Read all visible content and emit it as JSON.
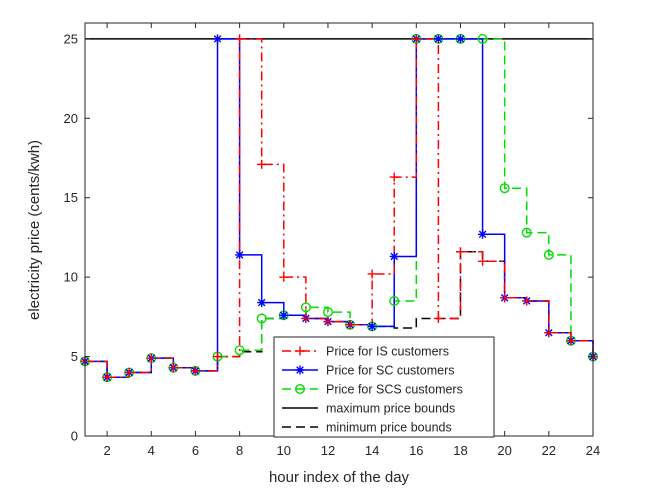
{
  "chart_data": {
    "type": "line",
    "step": true,
    "xlabel": "hour index of the day",
    "ylabel": "electricity price (cents/kwh)",
    "xlim": [
      1,
      24
    ],
    "ylim": [
      0,
      26
    ],
    "xticks": [
      2,
      4,
      6,
      8,
      10,
      12,
      14,
      16,
      18,
      20,
      22,
      24
    ],
    "yticks": [
      0,
      5,
      10,
      15,
      20,
      25
    ],
    "grid": false,
    "legend_position": "bottom-center",
    "x": [
      1,
      2,
      3,
      4,
      5,
      6,
      7,
      8,
      9,
      10,
      11,
      12,
      13,
      14,
      15,
      16,
      17,
      18,
      19,
      20,
      21,
      22,
      23,
      24
    ],
    "series": [
      {
        "name": "minimum price bounds",
        "color": "#000000",
        "style": "dashed",
        "marker": "none",
        "values": [
          4.7,
          3.7,
          4.0,
          4.9,
          4.3,
          4.1,
          5.0,
          5.3,
          7.4,
          7.6,
          7.4,
          7.2,
          7.0,
          6.9,
          6.8,
          7.4,
          7.4,
          11.6,
          11.0,
          8.7,
          8.5,
          6.5,
          6.0,
          5.0
        ]
      },
      {
        "name": "maximum price bounds",
        "color": "#000000",
        "style": "solid",
        "marker": "none",
        "values": [
          25,
          25,
          25,
          25,
          25,
          25,
          25,
          25,
          25,
          25,
          25,
          25,
          25,
          25,
          25,
          25,
          25,
          25,
          25,
          25,
          25,
          25,
          25,
          25
        ]
      },
      {
        "name": "Price for SCS customers",
        "color": "#00dd00",
        "style": "dashed",
        "marker": "circle",
        "values": [
          4.7,
          3.7,
          4.0,
          4.9,
          4.3,
          4.1,
          5.0,
          5.4,
          7.4,
          7.6,
          8.1,
          7.8,
          7.0,
          6.9,
          8.5,
          25,
          25,
          25,
          25,
          15.6,
          12.8,
          11.4,
          6.0,
          5.0
        ]
      },
      {
        "name": "Price for SC customers",
        "color": "#0000ff",
        "style": "solid",
        "marker": "star",
        "values": [
          4.7,
          3.7,
          4.0,
          4.9,
          4.3,
          4.1,
          25,
          11.4,
          8.4,
          7.6,
          7.4,
          7.2,
          7.0,
          6.9,
          11.3,
          25,
          25,
          25,
          12.7,
          8.7,
          8.5,
          6.5,
          6.0,
          5.0
        ]
      },
      {
        "name": "Price for IS customers",
        "color": "#ff0000",
        "style": "dashdot",
        "marker": "plus",
        "values": [
          4.7,
          3.7,
          4.0,
          4.9,
          4.3,
          4.1,
          5.0,
          25,
          17.1,
          10.0,
          7.4,
          7.2,
          7.0,
          10.2,
          16.3,
          25,
          7.4,
          11.6,
          11.0,
          8.7,
          8.5,
          6.5,
          6.0,
          5.0
        ]
      }
    ],
    "legend_order": [
      "Price for IS customers",
      "Price for SC customers",
      "Price for SCS customers",
      "maximum price bounds",
      "minimum price bounds"
    ]
  }
}
